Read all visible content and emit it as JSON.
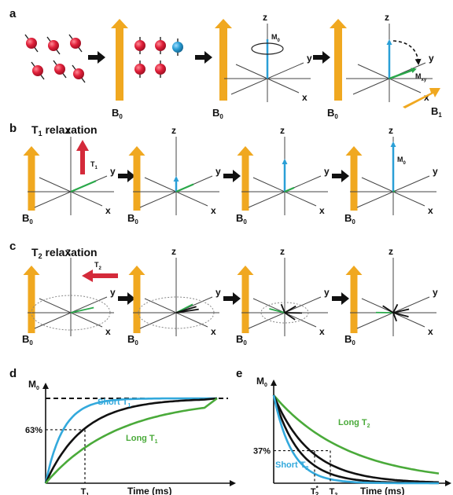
{
  "panels": {
    "a": {
      "label": "a"
    },
    "b": {
      "label": "b",
      "title_main": "T",
      "title_sub": "1",
      "title_rest": " relaxation"
    },
    "c": {
      "label": "c",
      "title_main": "T",
      "title_sub": "2",
      "title_rest": " relaxation"
    },
    "d": {
      "label": "d"
    },
    "e": {
      "label": "e"
    }
  },
  "symbols": {
    "B": "B",
    "zero": "0",
    "one": "1",
    "two": "2",
    "M": "M",
    "xy": "xy",
    "T": "T",
    "star": "*",
    "x": "x",
    "y": "y",
    "z": "z"
  },
  "graph_d": {
    "ylabel_main": "M",
    "ylabel_sub": "0",
    "mark_label": "63%",
    "tick_main": "T",
    "tick_sub": "1",
    "xlabel": "Time (ms)",
    "short_main": "Short T",
    "short_sub": "1",
    "long_main": "Long T",
    "long_sub": "1"
  },
  "graph_e": {
    "ylabel_main": "M",
    "ylabel_sub": "0",
    "mark_label": "37%",
    "xlabel": "Time (ms)",
    "long_main": "Long T",
    "long_sub": "2",
    "short_main": "Short T",
    "short_sub": "2"
  },
  "colors": {
    "field_arrow": "#f0a820",
    "spin_red": "#e0203a",
    "spin_blue": "#2a9fd6",
    "red_arrow": "#d42a3a",
    "magnetization": "#2a9fd6",
    "transverse": "#2aa84a",
    "curve_black": "#111111",
    "curve_blue": "#33a9dc",
    "curve_green": "#4aaa3a"
  }
}
